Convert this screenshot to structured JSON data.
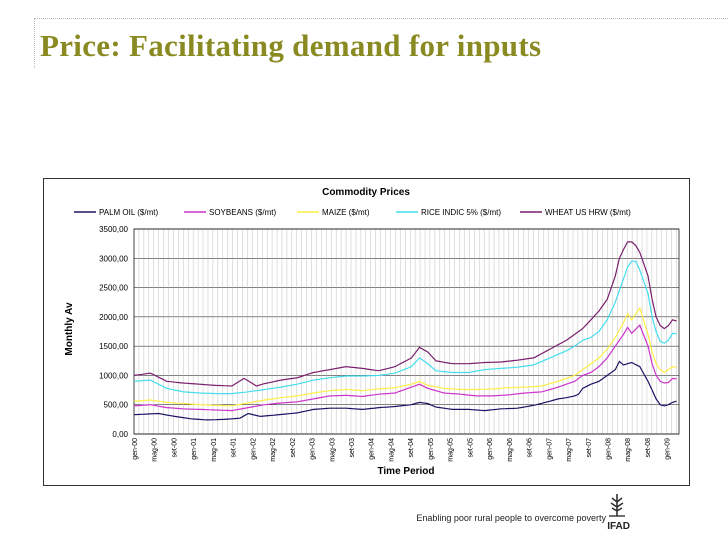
{
  "slide": {
    "title": "Price: Facilitating demand for inputs",
    "tagline": "Enabling poor rural people to overcome poverty",
    "logo_text": "IFAD"
  },
  "colors": {
    "title": "#8a8a22",
    "palm": "#1b1464",
    "soy": "#cc33cc",
    "maize": "#ffee44",
    "rice": "#44ddee",
    "wheat": "#7a1f6e"
  },
  "chart_data": {
    "type": "line",
    "title": "Commodity Prices",
    "xlabel": "Time Period",
    "ylabel": "Monthly Av",
    "ylim": [
      0,
      3500
    ],
    "yticks": [
      "0,00",
      "500,00",
      "1000,00",
      "1500,00",
      "2000,00",
      "2500,00",
      "3000,00",
      "3500,00"
    ],
    "ytick_values": [
      0,
      500,
      1000,
      1500,
      2000,
      2500,
      3000,
      3500
    ],
    "grid": true,
    "legend": "top",
    "x_tick_labels": [
      "gen-00",
      "mag-00",
      "set-00",
      "gen-01",
      "mag-01",
      "set-01",
      "gen-02",
      "mag-02",
      "set-02",
      "gen-03",
      "mag-03",
      "set-03",
      "gen-04",
      "mag-04",
      "set-04",
      "gen-05",
      "mag-05",
      "set-05",
      "gen-06",
      "mag-06",
      "set-06",
      "gen-07",
      "mag-07",
      "set-07",
      "gen-08",
      "mag-08",
      "set-08",
      "gen-09"
    ],
    "x_tick_step_months": 4,
    "months": 110,
    "series": [
      {
        "name": "PALM OIL ($/mt)",
        "color": "#1b1464",
        "anchors": [
          [
            0,
            330
          ],
          [
            6,
            350
          ],
          [
            10,
            300
          ],
          [
            14,
            260
          ],
          [
            18,
            240
          ],
          [
            22,
            250
          ],
          [
            26,
            270
          ],
          [
            28,
            350
          ],
          [
            31,
            300
          ],
          [
            34,
            320
          ],
          [
            40,
            360
          ],
          [
            44,
            420
          ],
          [
            48,
            440
          ],
          [
            52,
            440
          ],
          [
            56,
            420
          ],
          [
            60,
            450
          ],
          [
            64,
            470
          ],
          [
            68,
            500
          ],
          [
            70,
            540
          ],
          [
            72,
            520
          ],
          [
            74,
            460
          ],
          [
            78,
            420
          ],
          [
            82,
            420
          ],
          [
            86,
            400
          ],
          [
            90,
            430
          ],
          [
            94,
            440
          ],
          [
            98,
            490
          ],
          [
            102,
            560
          ],
          [
            104,
            600
          ],
          [
            106,
            620
          ],
          [
            108,
            650
          ],
          [
            109,
            680
          ],
          [
            110,
            780
          ],
          [
            112,
            850
          ],
          [
            114,
            900
          ],
          [
            116,
            1000
          ],
          [
            118,
            1100
          ],
          [
            119,
            1240
          ],
          [
            120,
            1180
          ],
          [
            122,
            1220
          ],
          [
            124,
            1150
          ],
          [
            126,
            900
          ],
          [
            127,
            750
          ],
          [
            128,
            600
          ],
          [
            129,
            500
          ],
          [
            130,
            480
          ],
          [
            131,
            500
          ],
          [
            132,
            540
          ],
          [
            133,
            560
          ]
        ]
      },
      {
        "name": "SOYBEANS ($/mt)",
        "color": "#cc33cc",
        "anchors": [
          [
            0,
            480
          ],
          [
            4,
            500
          ],
          [
            8,
            450
          ],
          [
            12,
            430
          ],
          [
            16,
            420
          ],
          [
            20,
            410
          ],
          [
            24,
            400
          ],
          [
            28,
            450
          ],
          [
            32,
            500
          ],
          [
            36,
            530
          ],
          [
            40,
            550
          ],
          [
            44,
            600
          ],
          [
            48,
            650
          ],
          [
            52,
            660
          ],
          [
            56,
            640
          ],
          [
            60,
            680
          ],
          [
            64,
            700
          ],
          [
            68,
            800
          ],
          [
            70,
            850
          ],
          [
            72,
            780
          ],
          [
            76,
            700
          ],
          [
            80,
            680
          ],
          [
            84,
            650
          ],
          [
            88,
            650
          ],
          [
            92,
            670
          ],
          [
            96,
            700
          ],
          [
            100,
            720
          ],
          [
            104,
            800
          ],
          [
            108,
            900
          ],
          [
            110,
            1000
          ],
          [
            112,
            1050
          ],
          [
            114,
            1150
          ],
          [
            116,
            1300
          ],
          [
            118,
            1500
          ],
          [
            120,
            1700
          ],
          [
            121,
            1820
          ],
          [
            122,
            1720
          ],
          [
            124,
            1860
          ],
          [
            126,
            1500
          ],
          [
            127,
            1200
          ],
          [
            128,
            1000
          ],
          [
            129,
            900
          ],
          [
            130,
            870
          ],
          [
            131,
            880
          ],
          [
            132,
            950
          ],
          [
            133,
            940
          ]
        ]
      },
      {
        "name": "MAIZE ($/mt)",
        "color": "#ffee44",
        "anchors": [
          [
            0,
            560
          ],
          [
            4,
            580
          ],
          [
            8,
            540
          ],
          [
            12,
            520
          ],
          [
            16,
            500
          ],
          [
            20,
            490
          ],
          [
            24,
            480
          ],
          [
            28,
            530
          ],
          [
            32,
            580
          ],
          [
            36,
            620
          ],
          [
            40,
            650
          ],
          [
            44,
            700
          ],
          [
            48,
            740
          ],
          [
            52,
            760
          ],
          [
            56,
            740
          ],
          [
            60,
            770
          ],
          [
            64,
            790
          ],
          [
            68,
            850
          ],
          [
            70,
            900
          ],
          [
            72,
            830
          ],
          [
            76,
            780
          ],
          [
            80,
            760
          ],
          [
            84,
            760
          ],
          [
            88,
            770
          ],
          [
            92,
            790
          ],
          [
            96,
            800
          ],
          [
            100,
            820
          ],
          [
            104,
            900
          ],
          [
            108,
            1000
          ],
          [
            110,
            1100
          ],
          [
            112,
            1200
          ],
          [
            114,
            1300
          ],
          [
            116,
            1450
          ],
          [
            118,
            1650
          ],
          [
            120,
            1900
          ],
          [
            121,
            2050
          ],
          [
            122,
            1950
          ],
          [
            124,
            2150
          ],
          [
            126,
            1700
          ],
          [
            127,
            1400
          ],
          [
            128,
            1200
          ],
          [
            129,
            1100
          ],
          [
            130,
            1050
          ],
          [
            131,
            1100
          ],
          [
            132,
            1150
          ],
          [
            133,
            1140
          ]
        ]
      },
      {
        "name": "RICE INDIC 5% ($/mt)",
        "color": "#44ddee",
        "anchors": [
          [
            0,
            900
          ],
          [
            4,
            920
          ],
          [
            8,
            780
          ],
          [
            12,
            720
          ],
          [
            16,
            700
          ],
          [
            20,
            690
          ],
          [
            24,
            690
          ],
          [
            28,
            720
          ],
          [
            32,
            760
          ],
          [
            36,
            800
          ],
          [
            40,
            850
          ],
          [
            44,
            920
          ],
          [
            48,
            960
          ],
          [
            52,
            990
          ],
          [
            56,
            990
          ],
          [
            60,
            1000
          ],
          [
            64,
            1040
          ],
          [
            68,
            1150
          ],
          [
            70,
            1300
          ],
          [
            72,
            1200
          ],
          [
            74,
            1080
          ],
          [
            78,
            1050
          ],
          [
            82,
            1050
          ],
          [
            86,
            1100
          ],
          [
            90,
            1120
          ],
          [
            94,
            1140
          ],
          [
            98,
            1180
          ],
          [
            102,
            1300
          ],
          [
            106,
            1420
          ],
          [
            108,
            1500
          ],
          [
            110,
            1600
          ],
          [
            112,
            1650
          ],
          [
            114,
            1750
          ],
          [
            116,
            1950
          ],
          [
            118,
            2250
          ],
          [
            120,
            2650
          ],
          [
            121,
            2850
          ],
          [
            122,
            2950
          ],
          [
            123,
            2950
          ],
          [
            124,
            2800
          ],
          [
            126,
            2400
          ],
          [
            127,
            2000
          ],
          [
            128,
            1750
          ],
          [
            129,
            1580
          ],
          [
            130,
            1550
          ],
          [
            131,
            1600
          ],
          [
            132,
            1720
          ],
          [
            133,
            1710
          ]
        ]
      },
      {
        "name": "WHEAT US HRW ($/mt)",
        "color": "#7a1f6e",
        "anchors": [
          [
            0,
            1000
          ],
          [
            4,
            1040
          ],
          [
            8,
            900
          ],
          [
            12,
            870
          ],
          [
            16,
            850
          ],
          [
            20,
            830
          ],
          [
            24,
            820
          ],
          [
            27,
            950
          ],
          [
            30,
            820
          ],
          [
            32,
            860
          ],
          [
            36,
            920
          ],
          [
            40,
            960
          ],
          [
            44,
            1050
          ],
          [
            48,
            1100
          ],
          [
            52,
            1150
          ],
          [
            56,
            1120
          ],
          [
            60,
            1080
          ],
          [
            64,
            1150
          ],
          [
            68,
            1300
          ],
          [
            70,
            1480
          ],
          [
            72,
            1400
          ],
          [
            74,
            1250
          ],
          [
            78,
            1200
          ],
          [
            82,
            1200
          ],
          [
            86,
            1220
          ],
          [
            90,
            1230
          ],
          [
            94,
            1260
          ],
          [
            98,
            1300
          ],
          [
            102,
            1450
          ],
          [
            106,
            1600
          ],
          [
            108,
            1700
          ],
          [
            110,
            1800
          ],
          [
            112,
            1950
          ],
          [
            114,
            2100
          ],
          [
            116,
            2300
          ],
          [
            118,
            2700
          ],
          [
            119,
            3000
          ],
          [
            120,
            3150
          ],
          [
            121,
            3280
          ],
          [
            122,
            3280
          ],
          [
            123,
            3220
          ],
          [
            124,
            3100
          ],
          [
            126,
            2700
          ],
          [
            127,
            2300
          ],
          [
            128,
            2000
          ],
          [
            129,
            1850
          ],
          [
            130,
            1800
          ],
          [
            131,
            1850
          ],
          [
            132,
            1950
          ],
          [
            133,
            1930
          ]
        ]
      }
    ]
  }
}
